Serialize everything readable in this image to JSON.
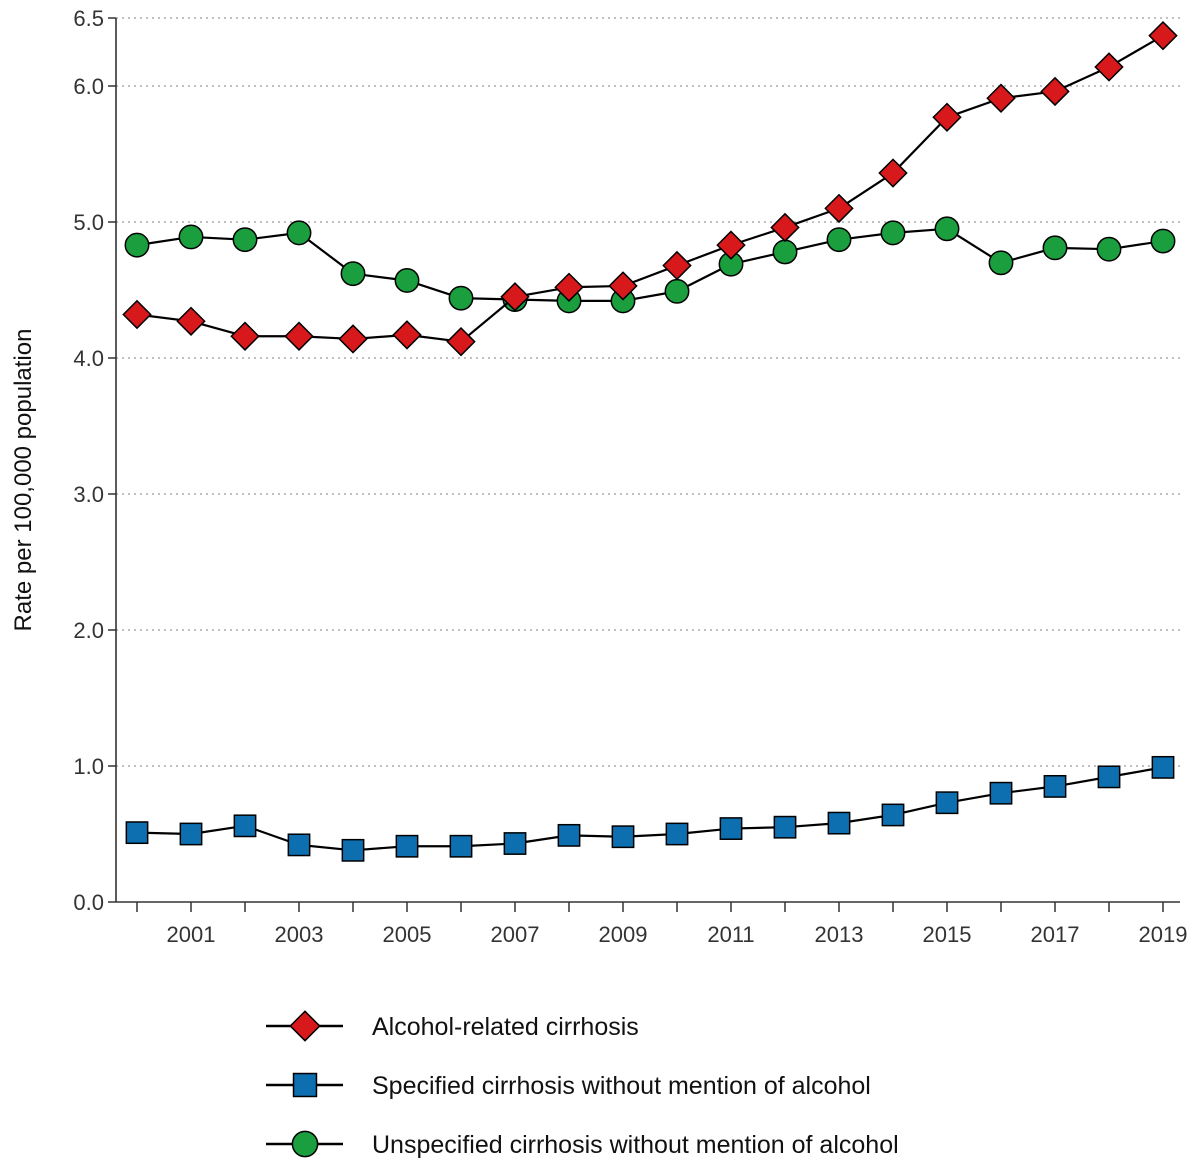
{
  "chart_data": {
    "type": "line",
    "title": "",
    "xlabel": "",
    "ylabel": "Rate per 100,000 population",
    "x": [
      2000,
      2001,
      2002,
      2003,
      2004,
      2005,
      2006,
      2007,
      2008,
      2009,
      2010,
      2011,
      2012,
      2013,
      2014,
      2015,
      2016,
      2017,
      2018,
      2019
    ],
    "x_tick_labels": [
      "2001",
      "2003",
      "2005",
      "2007",
      "2009",
      "2011",
      "2013",
      "2015",
      "2017",
      "2019"
    ],
    "ylim": [
      0,
      6.5
    ],
    "y_ticks": [
      0.0,
      1.0,
      2.0,
      3.0,
      4.0,
      5.0,
      6.0,
      6.5
    ],
    "y_tick_labels": [
      "0.0",
      "1.0",
      "2.0",
      "3.0",
      "4.0",
      "5.0",
      "6.0",
      "6.5"
    ],
    "grid": "horizontal dotted",
    "legend_position": "bottom",
    "series": [
      {
        "name": "Alcohol-related cirrhosis",
        "marker": "diamond",
        "color": "#d7191c",
        "values": [
          4.32,
          4.27,
          4.16,
          4.16,
          4.14,
          4.17,
          4.12,
          4.45,
          4.52,
          4.53,
          4.68,
          4.83,
          4.96,
          5.1,
          5.36,
          5.77,
          5.91,
          5.96,
          6.14,
          6.37
        ]
      },
      {
        "name": "Specified cirrhosis without mention of alcohol",
        "marker": "square",
        "color": "#0d6eb0",
        "values": [
          0.51,
          0.5,
          0.56,
          0.42,
          0.38,
          0.41,
          0.41,
          0.43,
          0.49,
          0.48,
          0.5,
          0.54,
          0.55,
          0.58,
          0.64,
          0.73,
          0.8,
          0.85,
          0.92,
          0.99
        ]
      },
      {
        "name": "Unspecified cirrhosis without mention of alcohol",
        "marker": "circle",
        "color": "#1b9e3e",
        "values": [
          4.83,
          4.89,
          4.87,
          4.92,
          4.62,
          4.57,
          4.44,
          4.43,
          4.42,
          4.42,
          4.49,
          4.69,
          4.78,
          4.87,
          4.92,
          4.95,
          4.7,
          4.81,
          4.8,
          4.86
        ]
      }
    ]
  }
}
